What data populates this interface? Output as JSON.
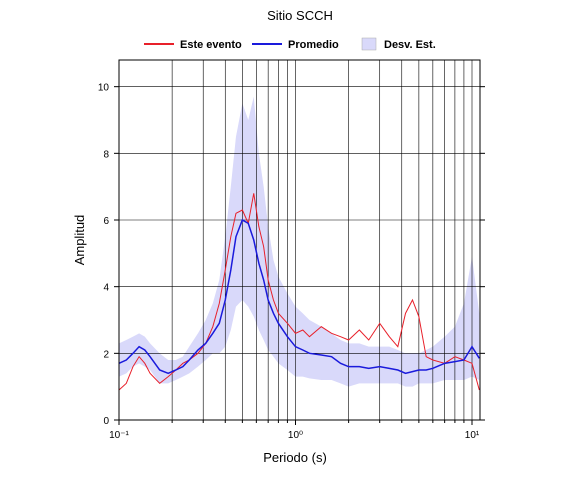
{
  "chart_data": {
    "type": "line",
    "title": "Sitio SCCH",
    "xlabel": "Periodo (s)",
    "ylabel": "Amplitud",
    "xscale": "log",
    "grid": true,
    "xlim": [
      0.1,
      11.1
    ],
    "ylim": [
      0,
      10.8
    ],
    "xticks": [
      {
        "value": 0.1,
        "label": "10⁻¹"
      },
      {
        "value": 1,
        "label": "10⁰"
      },
      {
        "value": 10,
        "label": "10¹"
      }
    ],
    "xgrid_minor": [
      0.2,
      0.3,
      0.4,
      0.5,
      0.6,
      0.7,
      0.8,
      0.9,
      2,
      3,
      4,
      5,
      6,
      7,
      8,
      9
    ],
    "yticks": [
      0,
      2,
      4,
      6,
      8,
      10
    ],
    "x": [
      0.1,
      0.11,
      0.12,
      0.13,
      0.14,
      0.15,
      0.17,
      0.19,
      0.21,
      0.23,
      0.25,
      0.28,
      0.31,
      0.34,
      0.37,
      0.4,
      0.43,
      0.46,
      0.5,
      0.54,
      0.58,
      0.62,
      0.66,
      0.7,
      0.75,
      0.8,
      0.9,
      1.0,
      1.1,
      1.2,
      1.4,
      1.6,
      1.8,
      2.0,
      2.3,
      2.6,
      3.0,
      3.4,
      3.8,
      4.2,
      4.6,
      5.0,
      5.5,
      6.0,
      7.0,
      8.0,
      9.0,
      10.0,
      11.0
    ],
    "series": [
      {
        "name": "Este evento",
        "color": "#e8202a",
        "values": [
          0.9,
          1.1,
          1.6,
          1.9,
          1.7,
          1.4,
          1.1,
          1.3,
          1.5,
          1.7,
          1.8,
          2.0,
          2.3,
          2.8,
          3.5,
          4.5,
          5.5,
          6.2,
          6.3,
          5.9,
          6.8,
          5.8,
          5.2,
          4.2,
          3.6,
          3.2,
          2.9,
          2.6,
          2.7,
          2.5,
          2.8,
          2.6,
          2.5,
          2.4,
          2.7,
          2.4,
          2.9,
          2.5,
          2.2,
          3.2,
          3.6,
          3.1,
          1.9,
          1.8,
          1.7,
          1.9,
          1.8,
          1.7,
          0.9
        ]
      },
      {
        "name": "Promedio",
        "color": "#1a1adc",
        "values": [
          1.7,
          1.8,
          2.0,
          2.2,
          2.1,
          1.9,
          1.5,
          1.4,
          1.5,
          1.6,
          1.8,
          2.1,
          2.3,
          2.6,
          2.9,
          3.6,
          4.5,
          5.5,
          6.0,
          5.9,
          5.4,
          4.7,
          4.2,
          3.6,
          3.2,
          2.9,
          2.5,
          2.2,
          2.1,
          2.0,
          1.95,
          1.9,
          1.7,
          1.6,
          1.6,
          1.55,
          1.6,
          1.55,
          1.5,
          1.4,
          1.45,
          1.5,
          1.5,
          1.55,
          1.7,
          1.75,
          1.8,
          2.2,
          1.85
        ]
      },
      {
        "name": "Desv. Est.",
        "color": "#d9d9fa",
        "low": [
          1.3,
          1.4,
          1.6,
          1.7,
          1.6,
          1.5,
          1.1,
          1.1,
          1.2,
          1.3,
          1.4,
          1.6,
          1.8,
          2.0,
          2.0,
          2.2,
          2.7,
          3.4,
          3.6,
          3.4,
          3.1,
          2.7,
          2.4,
          2.1,
          1.9,
          1.7,
          1.5,
          1.3,
          1.3,
          1.25,
          1.2,
          1.2,
          1.1,
          1.0,
          1.1,
          1.1,
          1.1,
          1.1,
          1.1,
          1.0,
          1.0,
          1.1,
          1.1,
          1.1,
          1.2,
          1.2,
          1.2,
          1.3,
          1.2
        ],
        "high": [
          2.3,
          2.4,
          2.5,
          2.6,
          2.5,
          2.3,
          2.0,
          1.8,
          1.8,
          1.9,
          2.2,
          2.6,
          3.0,
          3.5,
          4.2,
          5.5,
          7.0,
          8.5,
          9.5,
          9.0,
          9.7,
          8.0,
          7.0,
          5.8,
          4.8,
          4.3,
          3.8,
          3.4,
          3.2,
          3.0,
          2.8,
          2.6,
          2.4,
          2.3,
          2.3,
          2.2,
          2.2,
          2.2,
          2.1,
          2.0,
          2.0,
          2.0,
          2.1,
          2.2,
          2.5,
          2.8,
          3.5,
          4.9,
          3.2
        ]
      }
    ]
  }
}
